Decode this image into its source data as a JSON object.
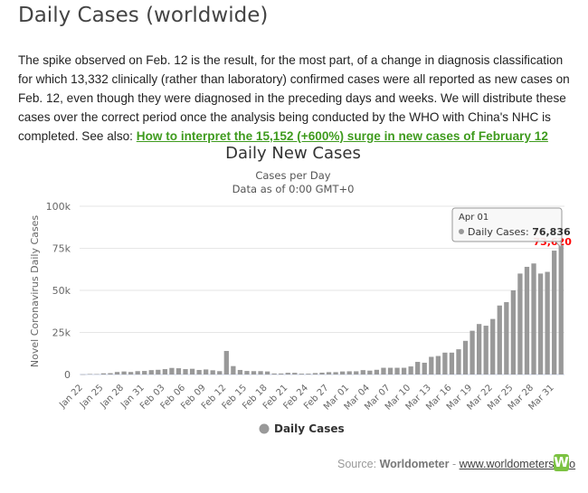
{
  "page": {
    "title": "Daily Cases (worldwide)",
    "description": "The spike observed on Feb. 12 is the result, for the most part, of a change in diagnosis classification for which 13,332 clinically (rather than laboratory) confirmed cases were all reported as new cases on Feb. 12, even though they were diagnosed in the preceding days and weeks. We will distribute these cases over the correct period once the analysis being conducted by the WHO with China's NHC is completed.",
    "see_also_label": "See also:",
    "see_also_link": "How to interpret the 15,152 (+600%) surge in new cases of February 12",
    "source_label": "Source:",
    "source_name": "Worldometer",
    "source_sep": "-",
    "source_url": "www.worldometers.info",
    "logo_letter": "W"
  },
  "chart_data": {
    "type": "bar",
    "title": "Daily New Cases",
    "subtitle": "Cases per Day",
    "subtitle2": "Data as of 0:00 GMT+0",
    "ylabel": "Novel Coronavirus Daily Cases",
    "xlabel": "",
    "ylim": [
      0,
      100000
    ],
    "yticks": [
      0,
      25000,
      50000,
      75000,
      100000
    ],
    "ytick_labels": [
      "0",
      "25k",
      "50k",
      "75k",
      "100k"
    ],
    "categories": [
      "Jan 22",
      "Jan 23",
      "Jan 24",
      "Jan 25",
      "Jan 26",
      "Jan 27",
      "Jan 28",
      "Jan 29",
      "Jan 30",
      "Jan 31",
      "Feb 01",
      "Feb 02",
      "Feb 03",
      "Feb 04",
      "Feb 05",
      "Feb 06",
      "Feb 07",
      "Feb 08",
      "Feb 09",
      "Feb 10",
      "Feb 11",
      "Feb 12",
      "Feb 13",
      "Feb 14",
      "Feb 15",
      "Feb 16",
      "Feb 17",
      "Feb 18",
      "Feb 19",
      "Feb 20",
      "Feb 21",
      "Feb 22",
      "Feb 23",
      "Feb 24",
      "Feb 25",
      "Feb 26",
      "Feb 27",
      "Feb 28",
      "Feb 29",
      "Mar 01",
      "Mar 02",
      "Mar 03",
      "Mar 04",
      "Mar 05",
      "Mar 06",
      "Mar 07",
      "Mar 08",
      "Mar 09",
      "Mar 10",
      "Mar 11",
      "Mar 12",
      "Mar 13",
      "Mar 14",
      "Mar 15",
      "Mar 16",
      "Mar 17",
      "Mar 18",
      "Mar 19",
      "Mar 20",
      "Mar 21",
      "Mar 22",
      "Mar 23",
      "Mar 24",
      "Mar 25",
      "Mar 26",
      "Mar 27",
      "Mar 28",
      "Mar 29",
      "Mar 30",
      "Mar 31",
      "Apr 01"
    ],
    "tick_labels": [
      "Jan 22",
      "Jan 25",
      "Jan 28",
      "Jan 31",
      "Feb 03",
      "Feb 06",
      "Feb 09",
      "Feb 12",
      "Feb 15",
      "Feb 18",
      "Feb 21",
      "Feb 24",
      "Feb 27",
      "Mar 01",
      "Mar 04",
      "Mar 07",
      "Mar 10",
      "Mar 13",
      "Mar 16",
      "Mar 19",
      "Mar 22",
      "Mar 25",
      "Mar 28",
      "Mar 31"
    ],
    "series": [
      {
        "name": "Daily Cases",
        "color": "#999999",
        "values": [
          100,
          300,
          250,
          700,
          800,
          1500,
          1800,
          1500,
          2000,
          2100,
          2600,
          2800,
          3200,
          3900,
          3700,
          3200,
          3400,
          2700,
          3000,
          2500,
          2000,
          14000,
          5000,
          2700,
          2100,
          2000,
          2000,
          1800,
          600,
          600,
          1000,
          1000,
          500,
          500,
          850,
          1100,
          1400,
          1400,
          1800,
          1900,
          1900,
          2600,
          2300,
          2800,
          4000,
          4000,
          4000,
          4000,
          4800,
          7500,
          7000,
          10500,
          11000,
          13000,
          13000,
          15000,
          20000,
          26000,
          30000,
          29000,
          33000,
          41000,
          43000,
          50000,
          60000,
          64000,
          66000,
          60000,
          61000,
          73620,
          76836
        ]
      }
    ],
    "data_label": {
      "category": "Mar 31",
      "value": "73,620",
      "color": "#ff0000"
    },
    "tooltip": {
      "date": "Apr 01",
      "series": "Daily Cases",
      "value_text": "76,836"
    },
    "legend": {
      "position": "bottom",
      "label": "Daily Cases"
    },
    "grid": {
      "y": true,
      "x": false
    }
  }
}
